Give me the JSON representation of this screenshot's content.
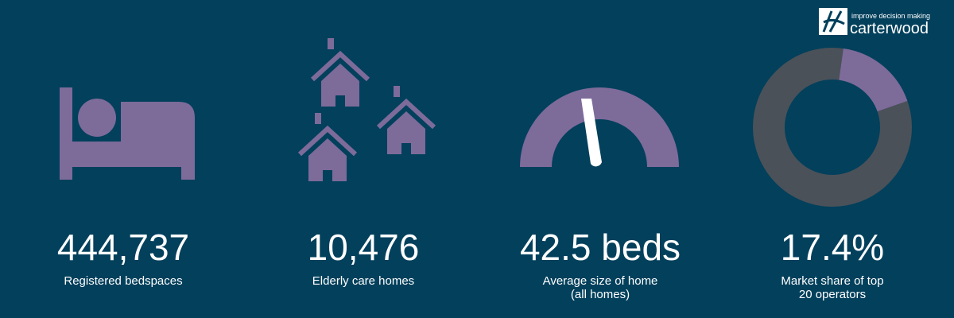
{
  "logo": {
    "tagline": "improve decision making",
    "name": "carterwood"
  },
  "stats": [
    {
      "value": "444,737",
      "label": [
        "Registered bedspaces"
      ]
    },
    {
      "value": "10,476",
      "label": [
        "Elderly care homes"
      ]
    },
    {
      "value": "42.5 beds",
      "label": [
        "Average size of home",
        "(all homes)"
      ]
    },
    {
      "value": "17.4%",
      "label": [
        "Market share of top",
        "20 operators"
      ]
    }
  ]
}
